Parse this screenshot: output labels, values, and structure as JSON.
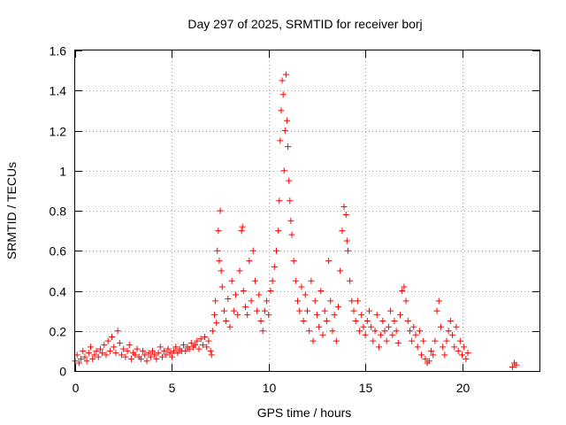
{
  "chart_data": {
    "type": "scatter",
    "title": "Day 297 of 2025, SRMTID for receiver borj",
    "xlabel": "GPS time / hours",
    "ylabel": "SRMTID / TECUs",
    "xlim": [
      0,
      24
    ],
    "ylim": [
      0,
      1.6
    ],
    "x_ticks": [
      0,
      5,
      10,
      15,
      20
    ],
    "x_tick_labels": [
      "0",
      "5",
      "10",
      "15",
      "20"
    ],
    "y_ticks": [
      0,
      0.2,
      0.4,
      0.6,
      0.8,
      1.0,
      1.2,
      1.4,
      1.6
    ],
    "y_tick_labels": [
      "0",
      "0.2",
      "0.4",
      "0.6",
      "0.8",
      "1",
      "1.2",
      "1.4",
      "1.6"
    ],
    "grid": true,
    "marker": "plus",
    "color": "#ff0000",
    "series": [
      {
        "name": "SRMTID",
        "points": [
          [
            0.0,
            0.05
          ],
          [
            0.1,
            0.08
          ],
          [
            0.2,
            0.04
          ],
          [
            0.3,
            0.06
          ],
          [
            0.4,
            0.1
          ],
          [
            0.5,
            0.07
          ],
          [
            0.6,
            0.05
          ],
          [
            0.7,
            0.09
          ],
          [
            0.8,
            0.12
          ],
          [
            0.9,
            0.06
          ],
          [
            1.0,
            0.08
          ],
          [
            1.1,
            0.1
          ],
          [
            1.2,
            0.07
          ],
          [
            1.3,
            0.11
          ],
          [
            1.4,
            0.09
          ],
          [
            1.5,
            0.13
          ],
          [
            1.6,
            0.08
          ],
          [
            1.7,
            0.15
          ],
          [
            1.8,
            0.1
          ],
          [
            1.9,
            0.17
          ],
          [
            2.0,
            0.12
          ],
          [
            2.1,
            0.09
          ],
          [
            2.2,
            0.2
          ],
          [
            2.3,
            0.14
          ],
          [
            2.4,
            0.08
          ],
          [
            2.5,
            0.11
          ],
          [
            2.6,
            0.07
          ],
          [
            2.7,
            0.1
          ],
          [
            2.8,
            0.13
          ],
          [
            2.9,
            0.06
          ],
          [
            3.0,
            0.09
          ],
          [
            3.1,
            0.08
          ],
          [
            3.2,
            0.11
          ],
          [
            3.3,
            0.07
          ],
          [
            3.4,
            0.06
          ],
          [
            3.5,
            0.1
          ],
          [
            3.6,
            0.08
          ],
          [
            3.7,
            0.05
          ],
          [
            3.8,
            0.09
          ],
          [
            3.9,
            0.07
          ],
          [
            4.0,
            0.1
          ],
          [
            4.1,
            0.08
          ],
          [
            4.2,
            0.06
          ],
          [
            4.3,
            0.09
          ],
          [
            4.4,
            0.12
          ],
          [
            4.5,
            0.07
          ],
          [
            4.6,
            0.1
          ],
          [
            4.7,
            0.08
          ],
          [
            4.8,
            0.11
          ],
          [
            4.9,
            0.09
          ],
          [
            5.0,
            0.07
          ],
          [
            5.1,
            0.1
          ],
          [
            5.2,
            0.12
          ],
          [
            5.3,
            0.09
          ],
          [
            5.4,
            0.11
          ],
          [
            5.5,
            0.1
          ],
          [
            5.6,
            0.13
          ],
          [
            5.7,
            0.1
          ],
          [
            5.8,
            0.12
          ],
          [
            5.9,
            0.11
          ],
          [
            6.0,
            0.14
          ],
          [
            6.1,
            0.12
          ],
          [
            6.2,
            0.13
          ],
          [
            6.3,
            0.15
          ],
          [
            6.4,
            0.11
          ],
          [
            6.5,
            0.16
          ],
          [
            6.6,
            0.13
          ],
          [
            6.7,
            0.17
          ],
          [
            6.8,
            0.12
          ],
          [
            6.9,
            0.15
          ],
          [
            7.0,
            0.1
          ],
          [
            7.05,
            0.08
          ],
          [
            7.1,
            0.2
          ],
          [
            7.2,
            0.28
          ],
          [
            7.25,
            0.35
          ],
          [
            7.3,
            0.24
          ],
          [
            7.35,
            0.6
          ],
          [
            7.4,
            0.7
          ],
          [
            7.45,
            0.55
          ],
          [
            7.5,
            0.8
          ],
          [
            7.55,
            0.5
          ],
          [
            7.6,
            0.42
          ],
          [
            7.7,
            0.3
          ],
          [
            7.8,
            0.25
          ],
          [
            7.9,
            0.36
          ],
          [
            8.0,
            0.22
          ],
          [
            8.1,
            0.45
          ],
          [
            8.2,
            0.3
          ],
          [
            8.3,
            0.38
          ],
          [
            8.4,
            0.28
          ],
          [
            8.5,
            0.5
          ],
          [
            8.6,
            0.7
          ],
          [
            8.65,
            0.72
          ],
          [
            8.7,
            0.4
          ],
          [
            8.8,
            0.32
          ],
          [
            8.9,
            0.28
          ],
          [
            9.0,
            0.55
          ],
          [
            9.1,
            0.35
          ],
          [
            9.2,
            0.6
          ],
          [
            9.3,
            0.45
          ],
          [
            9.4,
            0.3
          ],
          [
            9.5,
            0.38
          ],
          [
            9.6,
            0.25
          ],
          [
            9.7,
            0.2
          ],
          [
            9.8,
            0.3
          ],
          [
            9.9,
            0.35
          ],
          [
            10.0,
            0.28
          ],
          [
            10.1,
            0.4
          ],
          [
            10.2,
            0.45
          ],
          [
            10.3,
            0.52
          ],
          [
            10.4,
            0.6
          ],
          [
            10.5,
            0.7
          ],
          [
            10.55,
            0.85
          ],
          [
            10.6,
            1.15
          ],
          [
            10.65,
            1.3
          ],
          [
            10.7,
            1.45
          ],
          [
            10.75,
            1.38
          ],
          [
            10.8,
            1.0
          ],
          [
            10.85,
            1.2
          ],
          [
            10.9,
            1.48
          ],
          [
            10.95,
            1.25
          ],
          [
            11.0,
            1.12
          ],
          [
            11.05,
            0.95
          ],
          [
            11.1,
            0.85
          ],
          [
            11.15,
            0.75
          ],
          [
            11.2,
            0.68
          ],
          [
            11.3,
            0.55
          ],
          [
            11.4,
            0.45
          ],
          [
            11.5,
            0.35
          ],
          [
            11.6,
            0.3
          ],
          [
            11.7,
            0.42
          ],
          [
            11.8,
            0.25
          ],
          [
            11.9,
            0.38
          ],
          [
            12.0,
            0.3
          ],
          [
            12.1,
            0.2
          ],
          [
            12.2,
            0.45
          ],
          [
            12.3,
            0.15
          ],
          [
            12.4,
            0.35
          ],
          [
            12.5,
            0.28
          ],
          [
            12.6,
            0.22
          ],
          [
            12.7,
            0.4
          ],
          [
            12.8,
            0.18
          ],
          [
            12.9,
            0.3
          ],
          [
            13.0,
            0.25
          ],
          [
            13.1,
            0.55
          ],
          [
            13.2,
            0.35
          ],
          [
            13.3,
            0.2
          ],
          [
            13.4,
            0.28
          ],
          [
            13.5,
            0.15
          ],
          [
            13.6,
            0.32
          ],
          [
            13.7,
            0.5
          ],
          [
            13.8,
            0.7
          ],
          [
            13.9,
            0.82
          ],
          [
            14.0,
            0.78
          ],
          [
            14.05,
            0.65
          ],
          [
            14.1,
            0.6
          ],
          [
            14.2,
            0.45
          ],
          [
            14.3,
            0.35
          ],
          [
            14.4,
            0.3
          ],
          [
            14.5,
            0.25
          ],
          [
            14.6,
            0.35
          ],
          [
            14.7,
            0.2
          ],
          [
            14.8,
            0.28
          ],
          [
            14.9,
            0.22
          ],
          [
            15.0,
            0.18
          ],
          [
            15.1,
            0.25
          ],
          [
            15.2,
            0.3
          ],
          [
            15.3,
            0.22
          ],
          [
            15.4,
            0.15
          ],
          [
            15.5,
            0.2
          ],
          [
            15.6,
            0.28
          ],
          [
            15.7,
            0.12
          ],
          [
            15.8,
            0.18
          ],
          [
            15.9,
            0.25
          ],
          [
            16.0,
            0.2
          ],
          [
            16.1,
            0.15
          ],
          [
            16.2,
            0.22
          ],
          [
            16.3,
            0.3
          ],
          [
            16.4,
            0.18
          ],
          [
            16.5,
            0.25
          ],
          [
            16.6,
            0.2
          ],
          [
            16.7,
            0.14
          ],
          [
            16.8,
            0.28
          ],
          [
            16.9,
            0.4
          ],
          [
            17.0,
            0.42
          ],
          [
            17.1,
            0.35
          ],
          [
            17.2,
            0.25
          ],
          [
            17.3,
            0.2
          ],
          [
            17.4,
            0.15
          ],
          [
            17.5,
            0.22
          ],
          [
            17.6,
            0.18
          ],
          [
            17.7,
            0.12
          ],
          [
            17.8,
            0.2
          ],
          [
            17.9,
            0.08
          ],
          [
            18.0,
            0.15
          ],
          [
            18.1,
            0.06
          ],
          [
            18.2,
            0.04
          ],
          [
            18.3,
            0.05
          ],
          [
            18.4,
            0.1
          ],
          [
            18.5,
            0.08
          ],
          [
            18.6,
            0.15
          ],
          [
            18.7,
            0.3
          ],
          [
            18.8,
            0.35
          ],
          [
            18.9,
            0.22
          ],
          [
            19.0,
            0.12
          ],
          [
            19.1,
            0.08
          ],
          [
            19.2,
            0.15
          ],
          [
            19.3,
            0.2
          ],
          [
            19.4,
            0.25
          ],
          [
            19.5,
            0.18
          ],
          [
            19.6,
            0.12
          ],
          [
            19.7,
            0.22
          ],
          [
            19.8,
            0.1
          ],
          [
            19.9,
            0.15
          ],
          [
            20.0,
            0.08
          ],
          [
            20.1,
            0.12
          ],
          [
            20.2,
            0.06
          ],
          [
            20.3,
            0.09
          ],
          [
            22.6,
            0.02
          ],
          [
            22.7,
            0.04
          ],
          [
            22.8,
            0.03
          ]
        ]
      }
    ]
  }
}
